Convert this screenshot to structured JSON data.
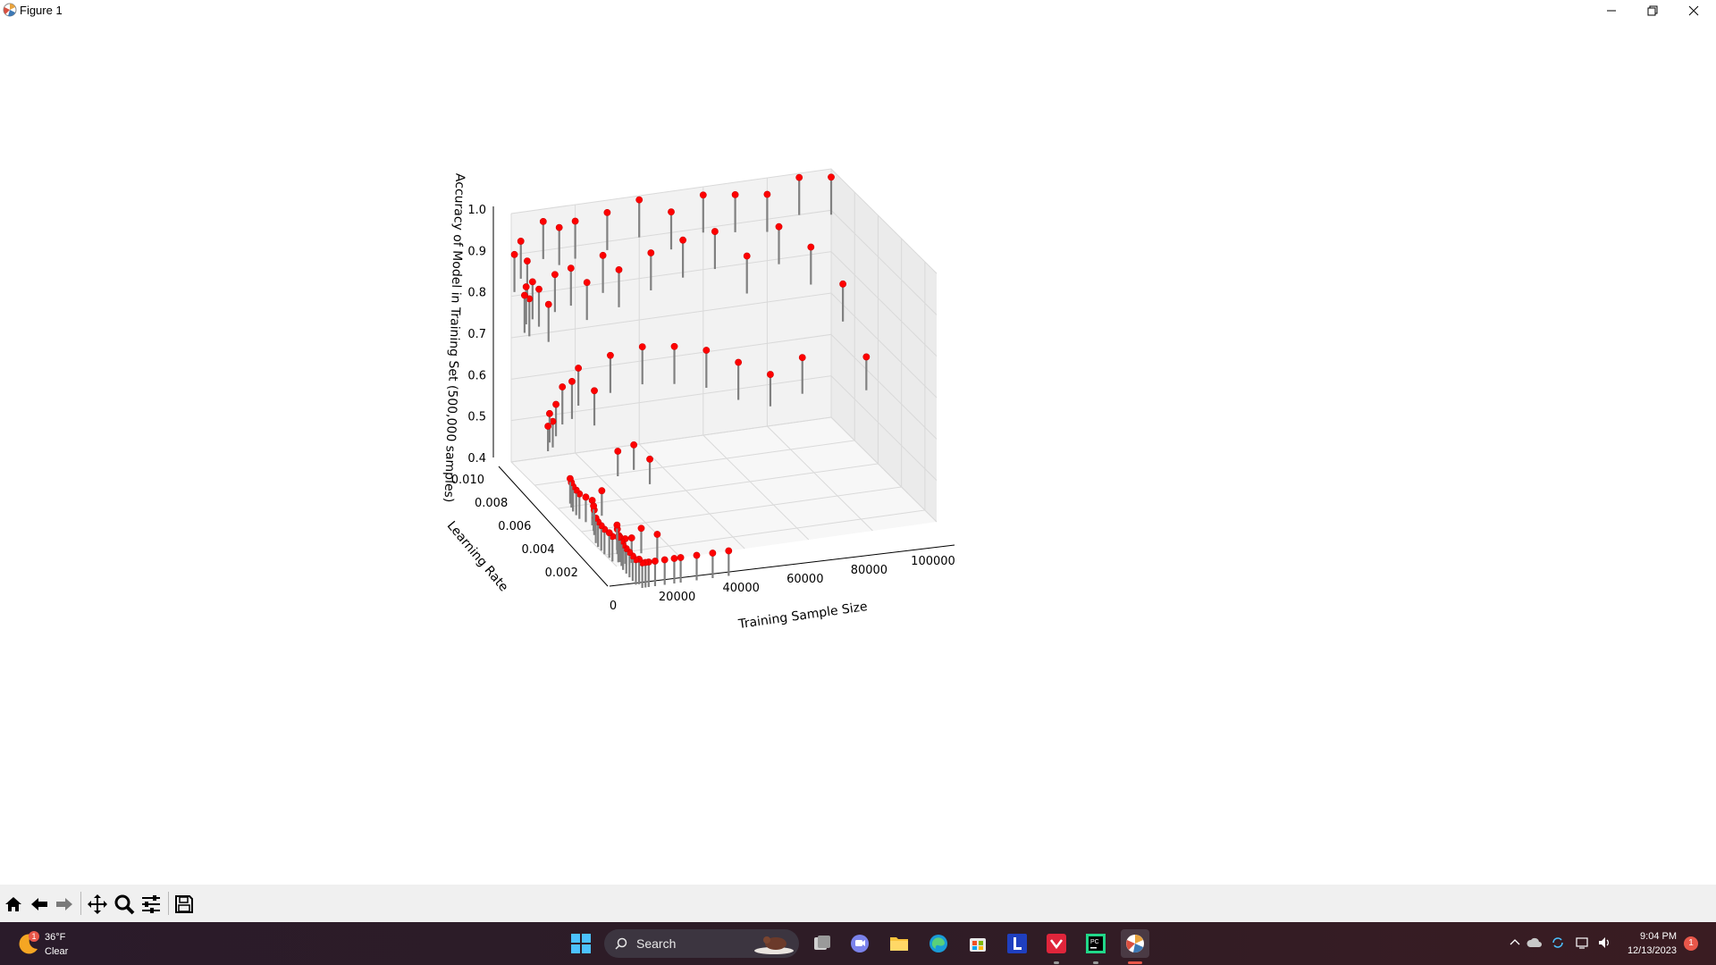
{
  "window": {
    "title": "Figure 1"
  },
  "toolbar": {
    "buttons": [
      "home-icon",
      "back-arrow-icon",
      "forward-arrow-icon",
      "pan-icon",
      "zoom-icon",
      "configure-subplots-icon",
      "save-icon"
    ]
  },
  "taskbar": {
    "weather": {
      "temp": "36°F",
      "condition": "Clear",
      "badge": "1"
    },
    "search_label": "Search",
    "apps": [
      "windows-start-icon",
      "search-icon",
      "task-view-icon",
      "teams-chat-icon",
      "file-explorer-icon",
      "edge-icon",
      "store-icon",
      "l-app-icon",
      "red-app-icon",
      "pycharm-icon",
      "matplotlib-icon"
    ],
    "clock": {
      "time": "9:04 PM",
      "date": "12/13/2023"
    },
    "notification_count": "1"
  },
  "colors": {
    "marker": "#ff0000",
    "stem": "#808080",
    "pane": "#f2f2f2",
    "grid": "#d9d9d9"
  },
  "chart_data": {
    "type": "scatter",
    "subtype": "3d-stem",
    "xlabel": "Training Sample Size",
    "ylabel": "Learning Rate",
    "zlabel": "Accuracy of Model in Training Set (500,000 samples)",
    "x_ticks": [
      "0",
      "20000",
      "40000",
      "60000",
      "80000",
      "100000"
    ],
    "y_ticks": [
      "0.002",
      "0.004",
      "0.006",
      "0.008",
      "0.010"
    ],
    "z_ticks": [
      "0.4",
      "0.5",
      "0.6",
      "0.7",
      "0.8",
      "0.9",
      "1.0"
    ],
    "xlim": [
      0,
      100000
    ],
    "ylim": [
      0.001,
      0.01
    ],
    "zlim": [
      0.4,
      1.0
    ],
    "grid": true,
    "series": [
      {
        "points": [
          [
            100,
            0.001,
            0.5
          ],
          [
            200,
            0.001,
            0.49
          ],
          [
            500,
            0.001,
            0.47
          ],
          [
            1000,
            0.001,
            0.47
          ],
          [
            1500,
            0.001,
            0.46
          ],
          [
            2000,
            0.001,
            0.45
          ],
          [
            3000,
            0.001,
            0.44
          ],
          [
            4000,
            0.001,
            0.43
          ],
          [
            5000,
            0.001,
            0.42
          ],
          [
            6000,
            0.001,
            0.41
          ],
          [
            7000,
            0.001,
            0.41
          ],
          [
            8000,
            0.001,
            0.4
          ],
          [
            9000,
            0.001,
            0.4
          ],
          [
            10000,
            0.001,
            0.4
          ],
          [
            12000,
            0.001,
            0.4
          ],
          [
            15000,
            0.001,
            0.4
          ],
          [
            18000,
            0.001,
            0.4
          ],
          [
            20000,
            0.001,
            0.4
          ],
          [
            25000,
            0.001,
            0.4
          ],
          [
            30000,
            0.001,
            0.4
          ],
          [
            35000,
            0.001,
            0.4
          ],
          [
            100,
            0.003,
            0.49
          ],
          [
            300,
            0.003,
            0.48
          ],
          [
            800,
            0.003,
            0.46
          ],
          [
            1500,
            0.003,
            0.45
          ],
          [
            2500,
            0.003,
            0.44
          ],
          [
            3500,
            0.003,
            0.43
          ],
          [
            5000,
            0.003,
            0.42
          ],
          [
            6000,
            0.003,
            0.41
          ],
          [
            8000,
            0.003,
            0.41
          ],
          [
            10000,
            0.003,
            0.4
          ],
          [
            12000,
            0.003,
            0.4
          ],
          [
            15000,
            0.003,
            0.42
          ],
          [
            20000,
            0.003,
            0.4
          ],
          [
            100,
            0.005,
            0.5
          ],
          [
            500,
            0.005,
            0.49
          ],
          [
            1000,
            0.005,
            0.48
          ],
          [
            2000,
            0.005,
            0.47
          ],
          [
            3000,
            0.005,
            0.46
          ],
          [
            5000,
            0.005,
            0.45
          ],
          [
            7000,
            0.005,
            0.44
          ],
          [
            10000,
            0.005,
            0.46
          ],
          [
            15000,
            0.005,
            0.55
          ],
          [
            20000,
            0.005,
            0.56
          ],
          [
            25000,
            0.005,
            0.52
          ],
          [
            500,
            0.007,
            0.57
          ],
          [
            1000,
            0.007,
            0.6
          ],
          [
            2000,
            0.007,
            0.58
          ],
          [
            3000,
            0.007,
            0.62
          ],
          [
            5000,
            0.007,
            0.66
          ],
          [
            8000,
            0.007,
            0.67
          ],
          [
            10000,
            0.007,
            0.7
          ],
          [
            15000,
            0.007,
            0.64
          ],
          [
            20000,
            0.007,
            0.72
          ],
          [
            30000,
            0.007,
            0.73
          ],
          [
            40000,
            0.007,
            0.72
          ],
          [
            50000,
            0.007,
            0.7
          ],
          [
            60000,
            0.007,
            0.66
          ],
          [
            70000,
            0.007,
            0.62
          ],
          [
            80000,
            0.007,
            0.65
          ],
          [
            100000,
            0.007,
            0.63
          ],
          [
            500,
            0.009,
            0.83
          ],
          [
            1000,
            0.009,
            0.85
          ],
          [
            2000,
            0.009,
            0.82
          ],
          [
            3000,
            0.009,
            0.86
          ],
          [
            5000,
            0.009,
            0.84
          ],
          [
            8000,
            0.009,
            0.8
          ],
          [
            10000,
            0.009,
            0.87
          ],
          [
            15000,
            0.009,
            0.88
          ],
          [
            20000,
            0.009,
            0.84
          ],
          [
            25000,
            0.009,
            0.9
          ],
          [
            30000,
            0.009,
            0.86
          ],
          [
            40000,
            0.009,
            0.89
          ],
          [
            50000,
            0.009,
            0.91
          ],
          [
            60000,
            0.009,
            0.92
          ],
          [
            70000,
            0.009,
            0.85
          ],
          [
            80000,
            0.009,
            0.91
          ],
          [
            90000,
            0.009,
            0.85
          ],
          [
            100000,
            0.009,
            0.75
          ],
          [
            1000,
            0.01,
            0.9
          ],
          [
            3000,
            0.01,
            0.93
          ],
          [
            5000,
            0.01,
            0.88
          ],
          [
            10000,
            0.01,
            0.97
          ],
          [
            15000,
            0.01,
            0.95
          ],
          [
            20000,
            0.01,
            0.96
          ],
          [
            30000,
            0.01,
            0.97
          ],
          [
            40000,
            0.01,
            0.99
          ],
          [
            50000,
            0.01,
            0.95
          ],
          [
            60000,
            0.01,
            0.98
          ],
          [
            70000,
            0.01,
            0.97
          ],
          [
            80000,
            0.01,
            0.96
          ],
          [
            90000,
            0.01,
            0.99
          ],
          [
            100000,
            0.01,
            0.98
          ]
        ]
      }
    ]
  }
}
